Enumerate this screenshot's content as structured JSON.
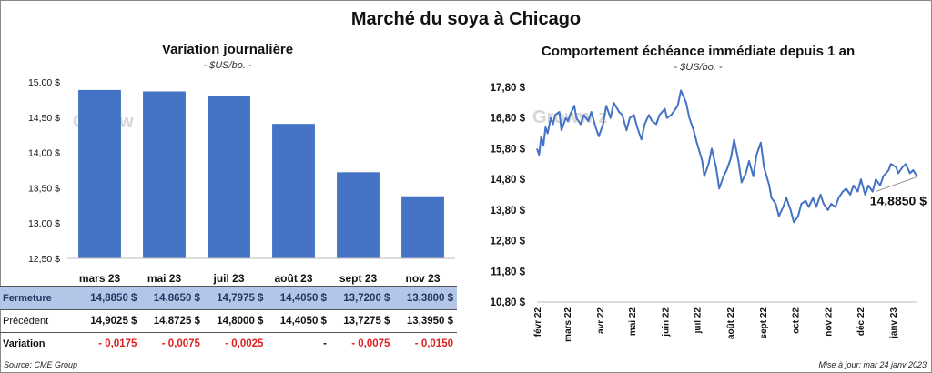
{
  "main_title": "Marché du soya à Chicago",
  "left_panel": {
    "title": "Variation journalière",
    "subtitle": "- $US/bo. -",
    "watermark": "Groww"
  },
  "right_panel": {
    "title": "Comportement  échéance immédiate depuis 1 an",
    "subtitle": "- $US/bo. -",
    "last_value_label": "14,8850 $",
    "watermark": "Groww  z"
  },
  "table": {
    "rows": [
      {
        "label": "Fermeture",
        "values": [
          "14,8850  $",
          "14,8650  $",
          "14,7975  $",
          "14,4050  $",
          "13,7200  $",
          "13,3800  $"
        ]
      },
      {
        "label": "Précédent",
        "values": [
          "14,9025  $",
          "14,8725  $",
          "14,8000  $",
          "14,4050  $",
          "13,7275  $",
          "13,3950  $"
        ]
      },
      {
        "label": "Variation",
        "values": [
          "- 0,0175",
          "- 0,0075",
          "- 0,0025",
          "-",
          "- 0,0075",
          "- 0,0150"
        ]
      }
    ]
  },
  "footer": {
    "source": "Source: CME Group",
    "updated": "Mise à jour: mar 24 janv 2023"
  },
  "colors": {
    "bar": "#4472c4",
    "line": "#4472c4",
    "negative": "#e02020",
    "close_row_bg": "#b4c6e7"
  },
  "chart_data": [
    {
      "type": "bar",
      "title": "Variation journalière",
      "subtitle": "- $US/bo. -",
      "categories": [
        "mars 23",
        "mai 23",
        "juil 23",
        "août 23",
        "sept 23",
        "nov 23"
      ],
      "values": [
        14.885,
        14.865,
        14.7975,
        14.405,
        13.72,
        13.38
      ],
      "ylim": [
        12.5,
        15.0
      ],
      "yticks": [
        12.5,
        13.0,
        13.5,
        14.0,
        14.5,
        15.0
      ],
      "ytick_labels": [
        "12,50 $",
        "13,00 $",
        "13,50 $",
        "14,00 $",
        "14,50 $",
        "15,00 $"
      ],
      "grid": false
    },
    {
      "type": "line",
      "title": "Comportement  échéance immédiate depuis 1 an",
      "subtitle": "- $US/bo. -",
      "ylim": [
        10.8,
        17.8
      ],
      "yticks": [
        10.8,
        11.8,
        12.8,
        13.8,
        14.8,
        15.8,
        16.8,
        17.8
      ],
      "ytick_labels": [
        "10,80 $",
        "11,80 $",
        "12,80 $",
        "13,80 $",
        "14,80 $",
        "15,80 $",
        "16,80 $",
        "17,80 $"
      ],
      "xlim": [
        "2022-02-01",
        "2023-01-24"
      ],
      "xtick_labels": [
        "févr 22",
        "mars 22",
        "avr 22",
        "mai 22",
        "juin 22",
        "juil 22",
        "août 22",
        "sept 22",
        "oct 22",
        "nov 22",
        "déc 22",
        "janv 23"
      ],
      "xticks": [
        "2022-02-01",
        "2022-03-01",
        "2022-04-01",
        "2022-05-01",
        "2022-06-01",
        "2022-07-01",
        "2022-08-01",
        "2022-09-01",
        "2022-10-01",
        "2022-11-01",
        "2022-12-01",
        "2023-01-01"
      ],
      "grid": false,
      "series": [
        {
          "x": [
            "2022-02-01",
            "2022-02-03",
            "2022-02-05",
            "2022-02-07",
            "2022-02-09",
            "2022-02-11",
            "2022-02-14",
            "2022-02-16",
            "2022-02-18",
            "2022-02-22",
            "2022-02-24",
            "2022-02-28",
            "2022-03-02",
            "2022-03-04",
            "2022-03-08",
            "2022-03-10",
            "2022-03-14",
            "2022-03-17",
            "2022-03-21",
            "2022-03-24",
            "2022-03-28",
            "2022-03-31",
            "2022-04-04",
            "2022-04-07",
            "2022-04-11",
            "2022-04-14",
            "2022-04-19",
            "2022-04-22",
            "2022-04-26",
            "2022-04-29",
            "2022-05-03",
            "2022-05-06",
            "2022-05-10",
            "2022-05-13",
            "2022-05-17",
            "2022-05-20",
            "2022-05-24",
            "2022-05-27",
            "2022-06-01",
            "2022-06-03",
            "2022-06-07",
            "2022-06-09",
            "2022-06-13",
            "2022-06-16",
            "2022-06-21",
            "2022-06-24",
            "2022-06-28",
            "2022-07-01",
            "2022-07-06",
            "2022-07-08",
            "2022-07-12",
            "2022-07-15",
            "2022-07-19",
            "2022-07-22",
            "2022-07-26",
            "2022-07-29",
            "2022-08-02",
            "2022-08-05",
            "2022-08-09",
            "2022-08-12",
            "2022-08-16",
            "2022-08-19",
            "2022-08-23",
            "2022-08-26",
            "2022-08-30",
            "2022-09-02",
            "2022-09-07",
            "2022-09-09",
            "2022-09-13",
            "2022-09-16",
            "2022-09-20",
            "2022-09-23",
            "2022-09-27",
            "2022-09-30",
            "2022-10-04",
            "2022-10-07",
            "2022-10-11",
            "2022-10-14",
            "2022-10-18",
            "2022-10-21",
            "2022-10-25",
            "2022-10-28",
            "2022-11-01",
            "2022-11-04",
            "2022-11-08",
            "2022-11-11",
            "2022-11-15",
            "2022-11-18",
            "2022-11-22",
            "2022-11-25",
            "2022-11-29",
            "2022-12-02",
            "2022-12-06",
            "2022-12-09",
            "2022-12-13",
            "2022-12-16",
            "2022-12-20",
            "2022-12-23",
            "2022-12-28",
            "2022-12-30",
            "2023-01-04",
            "2023-01-06",
            "2023-01-10",
            "2023-01-13",
            "2023-01-17",
            "2023-01-20",
            "2023-01-24"
          ],
          "y": [
            15.8,
            15.6,
            16.2,
            15.9,
            16.5,
            16.3,
            16.8,
            16.6,
            16.9,
            17.0,
            16.4,
            16.8,
            16.7,
            16.9,
            17.2,
            16.8,
            16.6,
            16.9,
            16.7,
            17.0,
            16.5,
            16.2,
            16.6,
            17.2,
            16.8,
            17.3,
            17.0,
            16.9,
            16.4,
            16.8,
            16.9,
            16.5,
            16.1,
            16.6,
            16.9,
            16.7,
            16.6,
            16.9,
            17.1,
            16.8,
            16.9,
            17.0,
            17.2,
            17.7,
            17.3,
            16.8,
            16.4,
            16.0,
            15.4,
            14.9,
            15.3,
            15.8,
            15.2,
            14.5,
            14.9,
            15.1,
            15.5,
            16.1,
            15.4,
            14.7,
            15.0,
            15.4,
            14.9,
            15.6,
            16.0,
            15.2,
            14.6,
            14.2,
            14.0,
            13.6,
            13.9,
            14.2,
            13.8,
            13.4,
            13.6,
            14.0,
            14.1,
            13.9,
            14.2,
            13.9,
            14.3,
            14.0,
            13.8,
            14.0,
            13.9,
            14.2,
            14.4,
            14.5,
            14.3,
            14.6,
            14.4,
            14.8,
            14.3,
            14.6,
            14.4,
            14.8,
            14.6,
            14.9,
            15.1,
            15.3,
            15.2,
            15.0,
            15.2,
            15.3,
            15.0,
            15.1,
            14.885
          ]
        }
      ]
    }
  ]
}
